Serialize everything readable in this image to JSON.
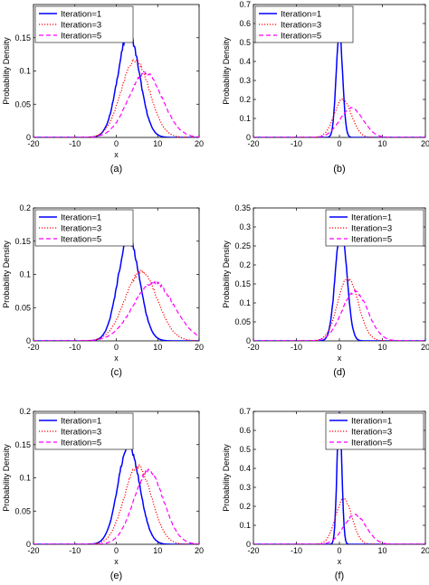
{
  "chart_data": [
    {
      "id": "a",
      "type": "line",
      "caption": "(a)",
      "xlabel": "x",
      "ylabel": "Probability Density",
      "xlim": [
        -20,
        20
      ],
      "ylim": [
        0,
        0.2
      ],
      "xticks": [
        -20,
        -10,
        0,
        10,
        20
      ],
      "yticks": [
        0,
        0.05,
        0.1,
        0.15
      ],
      "legend": "top-left",
      "series": [
        {
          "name": "Iteration=1",
          "color": "#0000ff",
          "style": "solid",
          "mean": 3,
          "sd": 2.6,
          "peak": 0.157
        },
        {
          "name": "Iteration=3",
          "color": "#ff0000",
          "style": "dotted",
          "mean": 4.6,
          "sd": 3.4,
          "peak": 0.117
        },
        {
          "name": "Iteration=5",
          "color": "#ff00ff",
          "style": "dashed",
          "mean": 7,
          "sd": 4.1,
          "peak": 0.097
        }
      ]
    },
    {
      "id": "b",
      "type": "line",
      "caption": "(b)",
      "xlabel": "",
      "ylabel": "Probability Density",
      "xlim": [
        -20,
        20
      ],
      "ylim": [
        0,
        0.7
      ],
      "xticks": [
        -20,
        -10,
        0,
        10,
        20
      ],
      "yticks": [
        0,
        0.1,
        0.2,
        0.3,
        0.4,
        0.5,
        0.6,
        0.7
      ],
      "legend": "top-left",
      "series": [
        {
          "name": "Iteration=1",
          "color": "#0000ff",
          "style": "solid",
          "mean": 0,
          "sd": 0.75,
          "peak": 0.555
        },
        {
          "name": "Iteration=3",
          "color": "#ff0000",
          "style": "dotted",
          "mean": 0.8,
          "sd": 2.0,
          "peak": 0.2
        },
        {
          "name": "Iteration=5",
          "color": "#ff00ff",
          "style": "dashed",
          "mean": 2.8,
          "sd": 2.7,
          "peak": 0.155
        }
      ]
    },
    {
      "id": "c",
      "type": "line",
      "caption": "(c)",
      "xlabel": "x",
      "ylabel": "Probability Density",
      "xlim": [
        -20,
        20
      ],
      "ylim": [
        0,
        0.2
      ],
      "xticks": [
        -20,
        -10,
        0,
        10,
        20
      ],
      "yticks": [
        0,
        0.05,
        0.1,
        0.15,
        0.2
      ],
      "legend": "top-left",
      "series": [
        {
          "name": "Iteration=1",
          "color": "#0000ff",
          "style": "solid",
          "mean": 3,
          "sd": 2.6,
          "peak": 0.155
        },
        {
          "name": "Iteration=3",
          "color": "#ff0000",
          "style": "dotted",
          "mean": 6,
          "sd": 3.9,
          "peak": 0.104
        },
        {
          "name": "Iteration=5",
          "color": "#ff00ff",
          "style": "dashed",
          "mean": 9,
          "sd": 4.9,
          "peak": 0.088
        }
      ]
    },
    {
      "id": "d",
      "type": "line",
      "caption": "(d)",
      "xlabel": "x",
      "ylabel": "Probability Density",
      "xlim": [
        -20,
        20
      ],
      "ylim": [
        0,
        0.35
      ],
      "xticks": [
        -20,
        -10,
        0,
        10,
        20
      ],
      "yticks": [
        0,
        0.05,
        0.1,
        0.15,
        0.2,
        0.25,
        0.3,
        0.35
      ],
      "legend": "top-right",
      "series": [
        {
          "name": "Iteration=1",
          "color": "#0000ff",
          "style": "solid",
          "mean": 0.4,
          "sd": 1.3,
          "peak": 0.305
        },
        {
          "name": "Iteration=3",
          "color": "#ff0000",
          "style": "dotted",
          "mean": 2,
          "sd": 2.4,
          "peak": 0.165
        },
        {
          "name": "Iteration=5",
          "color": "#ff00ff",
          "style": "dashed",
          "mean": 3.6,
          "sd": 3.0,
          "peak": 0.13
        }
      ]
    },
    {
      "id": "e",
      "type": "line",
      "caption": "(e)",
      "xlabel": "x",
      "ylabel": "Probability Density",
      "xlim": [
        -20,
        20
      ],
      "ylim": [
        0,
        0.2
      ],
      "xticks": [
        -20,
        -10,
        0,
        10,
        20
      ],
      "yticks": [
        0,
        0.05,
        0.1,
        0.15,
        0.2
      ],
      "legend": "top-left",
      "series": [
        {
          "name": "Iteration=1",
          "color": "#0000ff",
          "style": "solid",
          "mean": 3,
          "sd": 2.6,
          "peak": 0.149
        },
        {
          "name": "Iteration=3",
          "color": "#ff0000",
          "style": "dotted",
          "mean": 5.2,
          "sd": 3.3,
          "peak": 0.117
        },
        {
          "name": "Iteration=5",
          "color": "#ff00ff",
          "style": "dashed",
          "mean": 7.8,
          "sd": 3.6,
          "peak": 0.11
        }
      ]
    },
    {
      "id": "f",
      "type": "line",
      "caption": "(f)",
      "xlabel": "x",
      "ylabel": "Probability Density",
      "xlim": [
        -20,
        20
      ],
      "ylim": [
        0,
        0.7
      ],
      "xticks": [
        -20,
        -10,
        0,
        10,
        20
      ],
      "yticks": [
        0,
        0.1,
        0.2,
        0.3,
        0.4,
        0.5,
        0.6,
        0.7
      ],
      "legend": "top-right",
      "series": [
        {
          "name": "Iteration=1",
          "color": "#0000ff",
          "style": "solid",
          "mean": 0,
          "sd": 0.55,
          "peak": 0.7
        },
        {
          "name": "Iteration=3",
          "color": "#ff0000",
          "style": "dotted",
          "mean": 1,
          "sd": 1.9,
          "peak": 0.24
        },
        {
          "name": "Iteration=5",
          "color": "#ff00ff",
          "style": "dashed",
          "mean": 3.6,
          "sd": 2.6,
          "peak": 0.155
        }
      ]
    }
  ]
}
